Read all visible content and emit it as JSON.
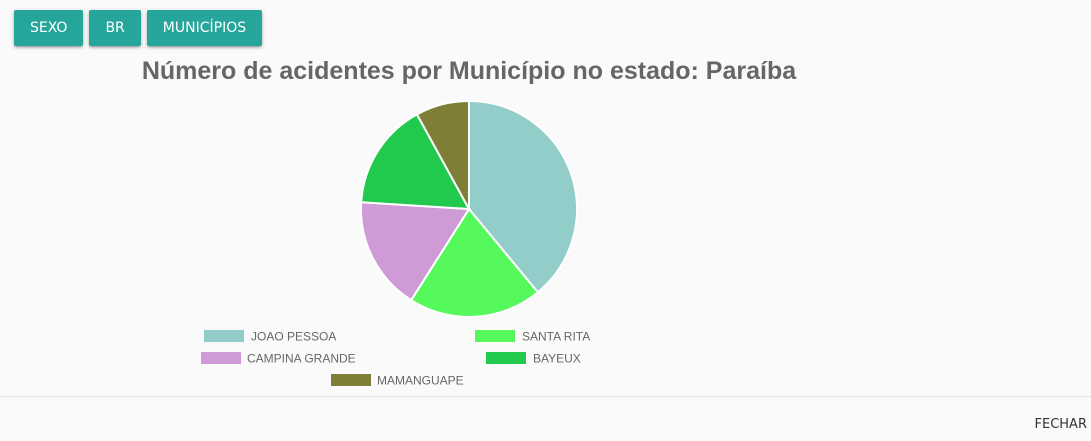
{
  "toolbar": {
    "buttons": [
      "SEXO",
      "BR",
      "MUNICÍPIOS"
    ],
    "color": "#26a69a"
  },
  "footer": {
    "close_label": "FECHAR"
  },
  "chart_data": {
    "type": "pie",
    "title": "Número de acidentes por Município no estado: Paraíba",
    "categories": [
      "JOAO PESSOA",
      "SANTA RITA",
      "CAMPINA GRANDE",
      "BAYEUX",
      "MAMANGUAPE"
    ],
    "values": [
      39,
      20,
      17,
      16,
      8
    ],
    "colors": [
      "#92cdc9",
      "#55f95c",
      "#cf9bd6",
      "#21c94d",
      "#7e7e37"
    ],
    "legend_position": "bottom"
  }
}
